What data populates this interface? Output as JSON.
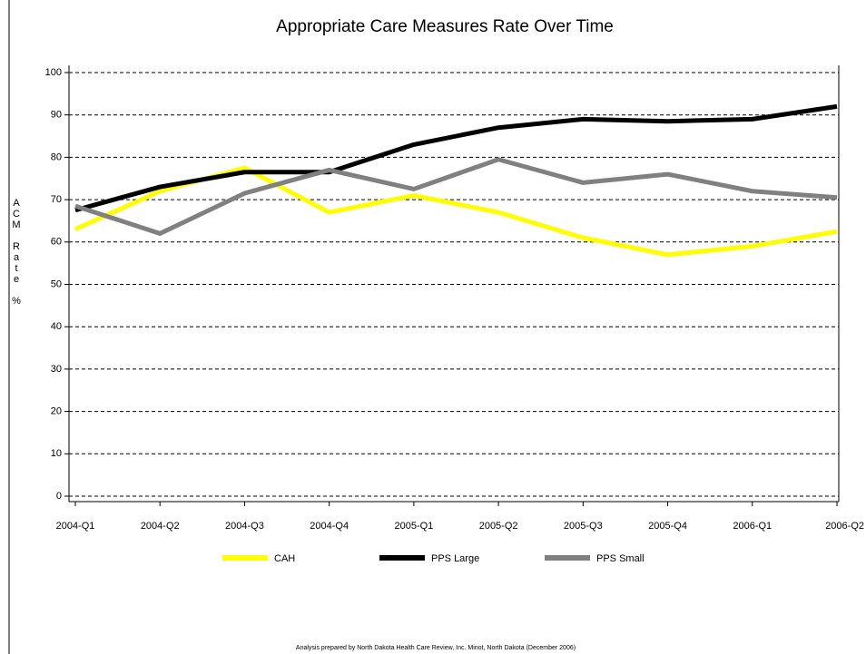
{
  "chart_data": {
    "type": "line",
    "title": "Appropriate Care Measures Rate Over Time",
    "y_label": "ACM Rate %",
    "footnote": "Analysis prepared by North Dakota Health Care Review, Inc. Minot, North Dakota (December 2006)",
    "categories": [
      "2004-Q1",
      "2004-Q2",
      "2004-Q3",
      "2004-Q4",
      "2005-Q1",
      "2005-Q2",
      "2005-Q3",
      "2005-Q4",
      "2006-Q1",
      "2006-Q2"
    ],
    "series": [
      {
        "name": "CAH",
        "color": "#ffff00",
        "values": [
          63,
          72,
          77.5,
          67,
          71,
          67,
          61,
          57,
          59,
          62.5
        ]
      },
      {
        "name": "PPS Large",
        "color": "#000000",
        "values": [
          67.5,
          73,
          76.5,
          76.5,
          83,
          87,
          89,
          88.5,
          89,
          92
        ]
      },
      {
        "name": "PPS Small",
        "color": "#808080",
        "values": [
          68.5,
          62,
          71.5,
          77,
          72.5,
          79.5,
          74,
          76,
          72,
          70.5
        ]
      }
    ],
    "ylim": [
      0,
      100
    ],
    "yticks": [
      0,
      10,
      20,
      30,
      40,
      50,
      60,
      70,
      80,
      90,
      100
    ],
    "grid": true
  }
}
